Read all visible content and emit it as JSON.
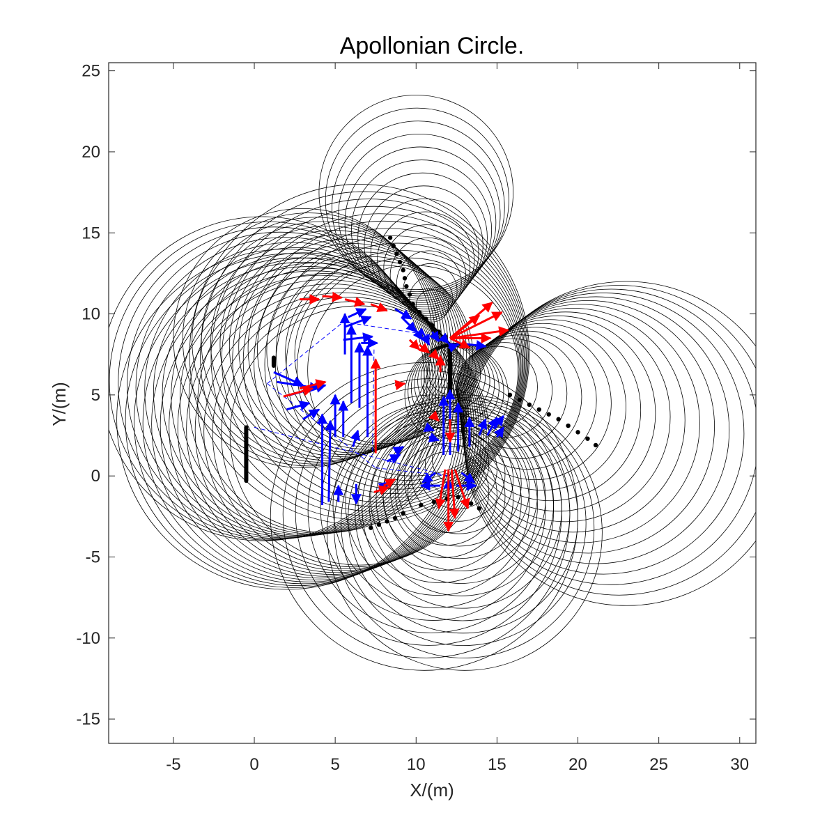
{
  "chart_data": {
    "type": "scatter",
    "title": "Apollonian Circle.",
    "xlabel": "X/(m)",
    "ylabel": "Y/(m)",
    "xlim": [
      -9,
      31
    ],
    "ylim": [
      -16.5,
      25.5
    ],
    "xticks": [
      -5,
      0,
      5,
      10,
      15,
      20,
      25,
      30
    ],
    "yticks": [
      25,
      20,
      15,
      10,
      5,
      0,
      -5,
      -10,
      -15
    ],
    "grid": false,
    "colors": {
      "circles": "#000000",
      "trajectory": "#000000",
      "velocity_blue": "#0000ff",
      "velocity_red": "#ff0000",
      "links": "#0000ff"
    },
    "circle_families": [
      {
        "cx_start": 6.5,
        "cy_start": 7.5,
        "cx_end": 9.8,
        "cy_end": 6.5,
        "r_start": 10.5,
        "r_end": 6.5,
        "count": 12
      },
      {
        "cx_start": 2.0,
        "cy_start": 3.5,
        "cx_end": 6.5,
        "cy_end": 2.5,
        "r_start": 10.5,
        "r_end": 8.0,
        "count": 14
      },
      {
        "cx_start": 3.0,
        "cy_start": 8.5,
        "cx_end": 8.0,
        "cy_end": 7.5,
        "r_start": 8.0,
        "r_end": 5.5,
        "count": 14
      },
      {
        "cx_start": 0.5,
        "cy_start": 6.0,
        "cx_end": 4.5,
        "cy_end": 4.5,
        "r_start": 10.0,
        "r_end": 8.0,
        "count": 12
      },
      {
        "cx_start": 23.0,
        "cy_start": 2.0,
        "cx_end": 15.0,
        "cy_end": 5.5,
        "r_start": 10.0,
        "r_end": 2.5,
        "count": 18
      },
      {
        "cx_start": 10.0,
        "cy_start": 17.5,
        "cx_end": 11.0,
        "cy_end": 10.5,
        "r_start": 6.0,
        "r_end": 1.0,
        "count": 16
      },
      {
        "cx_start": 13.0,
        "cy_start": -3.5,
        "cx_end": 12.5,
        "cy_end": 1.0,
        "r_start": 8.5,
        "r_end": 1.5,
        "count": 16
      },
      {
        "cx_start": 10.5,
        "cy_start": -2.5,
        "cx_end": 12.0,
        "cy_end": -1.0,
        "r_start": 9.5,
        "r_end": 2.5,
        "count": 12
      },
      {
        "cx_start": 12.5,
        "cy_start": 5.0,
        "cx_end": 12.2,
        "cy_end": 6.5,
        "r_start": 3.2,
        "r_end": 1.5,
        "count": 8
      }
    ],
    "black_segments": [
      {
        "x": -0.5,
        "y1": -0.3,
        "y2": 3.0
      },
      {
        "x": 1.2,
        "y1": 6.8,
        "y2": 7.3
      },
      {
        "x": 12.1,
        "y1": 5.0,
        "y2": 7.9
      }
    ],
    "trajectory_points": [
      {
        "x": 8.4,
        "y": 14.7
      },
      {
        "x": 8.6,
        "y": 14.2
      },
      {
        "x": 8.8,
        "y": 13.7
      },
      {
        "x": 9.0,
        "y": 13.2
      },
      {
        "x": 9.2,
        "y": 12.7
      },
      {
        "x": 9.3,
        "y": 12.2
      },
      {
        "x": 9.4,
        "y": 11.7
      },
      {
        "x": 9.6,
        "y": 11.2
      },
      {
        "x": 9.8,
        "y": 10.6
      },
      {
        "x": 10.2,
        "y": 10.1
      },
      {
        "x": 10.6,
        "y": 9.7
      },
      {
        "x": 11.0,
        "y": 9.3
      },
      {
        "x": 11.4,
        "y": 8.9
      },
      {
        "x": 11.8,
        "y": 8.6
      },
      {
        "x": 15.8,
        "y": 5.0
      },
      {
        "x": 16.4,
        "y": 4.7
      },
      {
        "x": 17.0,
        "y": 4.4
      },
      {
        "x": 17.6,
        "y": 4.1
      },
      {
        "x": 18.2,
        "y": 3.8
      },
      {
        "x": 18.8,
        "y": 3.5
      },
      {
        "x": 19.4,
        "y": 3.1
      },
      {
        "x": 20.0,
        "y": 2.7
      },
      {
        "x": 20.6,
        "y": 2.3
      },
      {
        "x": 21.1,
        "y": 1.9
      },
      {
        "x": 7.2,
        "y": -3.2
      },
      {
        "x": 7.7,
        "y": -3.0
      },
      {
        "x": 8.2,
        "y": -2.8
      },
      {
        "x": 8.7,
        "y": -2.6
      },
      {
        "x": 9.2,
        "y": -2.3
      },
      {
        "x": 10.3,
        "y": -1.8
      },
      {
        "x": 11.1,
        "y": -1.6
      },
      {
        "x": 11.9,
        "y": -1.4
      },
      {
        "x": 12.6,
        "y": -1.3
      },
      {
        "x": 13.4,
        "y": -1.7
      },
      {
        "x": 13.9,
        "y": -2.0
      }
    ],
    "link_lines": [
      {
        "x1": 0.0,
        "y1": 3.0,
        "x2": 12.0,
        "y2": 0.0
      },
      {
        "x1": 0.8,
        "y1": 5.7,
        "x2": 7.5,
        "y2": 0.5
      },
      {
        "x1": 0.8,
        "y1": 5.7,
        "x2": 5.5,
        "y2": 9.5
      },
      {
        "x1": 5.5,
        "y1": 9.5,
        "x2": 11.5,
        "y2": 8.6
      },
      {
        "x1": 7.5,
        "y1": 0.5,
        "x2": 12.0,
        "y2": 0.0
      },
      {
        "x1": 7.4,
        "y1": 7.8,
        "x2": 7.3,
        "y2": 1.3
      }
    ],
    "blue_vectors": [
      {
        "x": 4.2,
        "y": -1.8,
        "dx": 0.0,
        "dy": 5.6
      },
      {
        "x": 4.6,
        "y": -1.6,
        "dx": 0.1,
        "dy": 5.0
      },
      {
        "x": 5.0,
        "y": 2.4,
        "dx": 0.0,
        "dy": 2.6
      },
      {
        "x": 5.5,
        "y": 2.4,
        "dx": 0.0,
        "dy": 2.2
      },
      {
        "x": 6.1,
        "y": 1.8,
        "dx": 0.3,
        "dy": 1.0
      },
      {
        "x": 6.5,
        "y": 4.2,
        "dx": 0.0,
        "dy": 4.0
      },
      {
        "x": 6.0,
        "y": 4.5,
        "dx": 0.0,
        "dy": 4.8
      },
      {
        "x": 5.6,
        "y": 7.5,
        "dx": 0.0,
        "dy": 2.5
      },
      {
        "x": 7.0,
        "y": 2.4,
        "dx": 0.0,
        "dy": 5.6
      },
      {
        "x": 1.2,
        "y": 6.4,
        "dx": 1.8,
        "dy": -0.8
      },
      {
        "x": 1.4,
        "y": 5.8,
        "dx": 2.6,
        "dy": -0.4
      },
      {
        "x": 2.2,
        "y": 5.0,
        "dx": 2.2,
        "dy": 0.6
      },
      {
        "x": 2.0,
        "y": 4.1,
        "dx": 1.4,
        "dy": 0.4
      },
      {
        "x": 3.0,
        "y": 3.5,
        "dx": 1.0,
        "dy": 0.6
      },
      {
        "x": 5.8,
        "y": 9.8,
        "dx": 1.1,
        "dy": 0.5
      },
      {
        "x": 5.6,
        "y": 9.2,
        "dx": 1.6,
        "dy": 0.6
      },
      {
        "x": 5.5,
        "y": 8.4,
        "dx": 1.8,
        "dy": 0.2
      },
      {
        "x": 6.6,
        "y": 8.2,
        "dx": 1.0,
        "dy": 0.0
      },
      {
        "x": 8.7,
        "y": 10.3,
        "dx": 1.0,
        "dy": -0.6
      },
      {
        "x": 9.1,
        "y": 9.8,
        "dx": 0.9,
        "dy": -0.9
      },
      {
        "x": 9.7,
        "y": 9.4,
        "dx": 0.7,
        "dy": -1.0
      },
      {
        "x": 10.3,
        "y": 9.1,
        "dx": 0.5,
        "dy": -1.0
      },
      {
        "x": 11.0,
        "y": 8.9,
        "dx": 0.4,
        "dy": -0.6
      },
      {
        "x": 11.6,
        "y": 8.6,
        "dx": 0.4,
        "dy": -0.4
      },
      {
        "x": 12.0,
        "y": 7.9,
        "dx": 0.6,
        "dy": 0.2
      },
      {
        "x": 12.5,
        "y": 8.2,
        "dx": 1.8,
        "dy": -0.2
      },
      {
        "x": 11.7,
        "y": 1.3,
        "dx": 0.0,
        "dy": 3.6
      },
      {
        "x": 12.1,
        "y": 1.3,
        "dx": 0.0,
        "dy": 4.0
      },
      {
        "x": 12.6,
        "y": 1.5,
        "dx": 0.0,
        "dy": 3.0
      },
      {
        "x": 13.3,
        "y": 1.8,
        "dx": 0.0,
        "dy": 1.8
      },
      {
        "x": 13.9,
        "y": 2.5,
        "dx": 0.4,
        "dy": 1.0
      },
      {
        "x": 14.4,
        "y": 2.5,
        "dx": 0.6,
        "dy": 1.1
      },
      {
        "x": 14.8,
        "y": 2.9,
        "dx": 0.6,
        "dy": 0.8
      },
      {
        "x": 15.0,
        "y": 2.4,
        "dx": 0.4,
        "dy": 0.6
      },
      {
        "x": 11.2,
        "y": 0.2,
        "dx": -0.8,
        "dy": -0.6
      },
      {
        "x": 12.8,
        "y": 0.2,
        "dx": 0.8,
        "dy": -0.6
      },
      {
        "x": 12.0,
        "y": -1.2,
        "dx": 0.0,
        "dy": 1.0
      },
      {
        "x": 11.5,
        "y": -0.6,
        "dx": -1.2,
        "dy": 0.0
      },
      {
        "x": 12.5,
        "y": -0.6,
        "dx": 1.2,
        "dy": 0.0
      },
      {
        "x": 8.2,
        "y": 0.9,
        "dx": 0.8,
        "dy": 0.4
      },
      {
        "x": 7.7,
        "y": -0.8,
        "dx": 0.6,
        "dy": 0.4
      },
      {
        "x": 8.7,
        "y": 1.5,
        "dx": 0.5,
        "dy": 0.3
      },
      {
        "x": 10.6,
        "y": 3.0,
        "dx": 0.5,
        "dy": -0.2
      },
      {
        "x": 10.8,
        "y": 2.4,
        "dx": 0.6,
        "dy": -0.2
      },
      {
        "x": 6.3,
        "y": -0.5,
        "dx": 0.0,
        "dy": -1.2
      },
      {
        "x": 5.2,
        "y": -1.6,
        "dx": 0.0,
        "dy": 1.0
      }
    ],
    "red_vectors": [
      {
        "x": 2.8,
        "y": 10.9,
        "dx": 1.2,
        "dy": 0.0
      },
      {
        "x": 4.2,
        "y": 11.1,
        "dx": 1.2,
        "dy": -0.1
      },
      {
        "x": 5.6,
        "y": 10.9,
        "dx": 1.2,
        "dy": -0.3
      },
      {
        "x": 7.2,
        "y": 10.6,
        "dx": 1.0,
        "dy": -0.4
      },
      {
        "x": 1.8,
        "y": 4.9,
        "dx": 1.8,
        "dy": 0.5
      },
      {
        "x": 2.8,
        "y": 5.4,
        "dx": 1.6,
        "dy": 0.4
      },
      {
        "x": 7.5,
        "y": 1.4,
        "dx": 0.0,
        "dy": 5.8
      },
      {
        "x": 8.7,
        "y": 5.6,
        "dx": 0.6,
        "dy": 0.1
      },
      {
        "x": 7.4,
        "y": -1.0,
        "dx": 0.9,
        "dy": 0.3
      },
      {
        "x": 8.0,
        "y": -0.6,
        "dx": 0.7,
        "dy": 0.4
      },
      {
        "x": 12.1,
        "y": 8.5,
        "dx": 2.6,
        "dy": 2.2
      },
      {
        "x": 12.1,
        "y": 8.5,
        "dx": 3.2,
        "dy": 1.6
      },
      {
        "x": 12.1,
        "y": 8.5,
        "dx": 3.6,
        "dy": 0.5
      },
      {
        "x": 12.1,
        "y": 8.5,
        "dx": 2.5,
        "dy": 0.0
      },
      {
        "x": 12.1,
        "y": 8.5,
        "dx": 1.8,
        "dy": 1.4
      },
      {
        "x": 12.1,
        "y": 8.5,
        "dx": 1.2,
        "dy": -0.6
      },
      {
        "x": 10.2,
        "y": 8.1,
        "dx": 0.6,
        "dy": -0.5
      },
      {
        "x": 9.6,
        "y": 8.4,
        "dx": 0.6,
        "dy": -0.6
      },
      {
        "x": 11.0,
        "y": 7.6,
        "dx": 0.4,
        "dy": -0.4
      },
      {
        "x": 11.5,
        "y": 6.4,
        "dx": 0.0,
        "dy": 1.0
      },
      {
        "x": 12.0,
        "y": 0.4,
        "dx": 0.0,
        "dy": -3.8
      },
      {
        "x": 12.2,
        "y": 0.4,
        "dx": 0.2,
        "dy": -3.0
      },
      {
        "x": 12.4,
        "y": 0.4,
        "dx": 0.8,
        "dy": -2.4
      },
      {
        "x": 11.8,
        "y": 0.4,
        "dx": -0.4,
        "dy": -2.4
      },
      {
        "x": 12.1,
        "y": 3.5,
        "dx": 0.0,
        "dy": -1.4
      },
      {
        "x": 11.0,
        "y": 3.8,
        "dx": 0.4,
        "dy": -0.4
      }
    ]
  }
}
